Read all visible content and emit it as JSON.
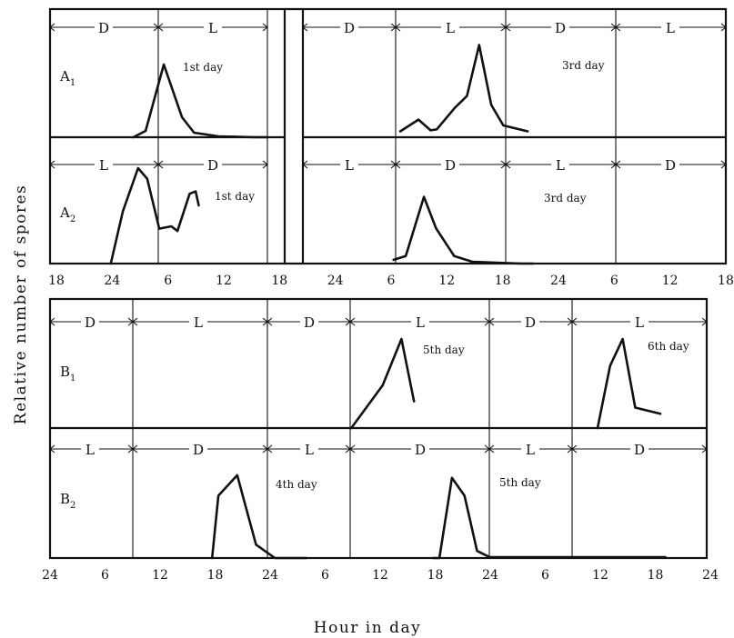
{
  "chart_data": {
    "type": "line",
    "ylabel": "Relative number of spores",
    "xlabel": "Hour in day",
    "top": {
      "x_ticks": [
        "18",
        "24",
        "6",
        "12",
        "18",
        "24",
        "6",
        "12",
        "18",
        "24",
        "6",
        "12",
        "18"
      ],
      "panels": [
        {
          "label": "A",
          "subscript": "1",
          "segments": [
            [
              "D",
              "L"
            ],
            [
              "D",
              "L",
              "D",
              "L"
            ]
          ],
          "series": [
            {
              "day_label": "1st day",
              "points": [
                [
                  22,
                  0
                ],
                [
                  24,
                  0.07
                ],
                [
                  27,
                  0.8
                ],
                [
                  30,
                  0.22
                ],
                [
                  32,
                  0.05
                ],
                [
                  36,
                  0.01
                ],
                [
                  42,
                  0
                ],
                [
                  44,
                  0
                ]
              ]
            },
            {
              "day_label": "3rd day",
              "points": [
                [
                  15,
                  0.06
                ],
                [
                  18,
                  0.18
                ],
                [
                  20,
                  0.07
                ],
                [
                  21,
                  0.08
                ],
                [
                  24,
                  0.3
                ],
                [
                  26,
                  0.42
                ],
                [
                  28,
                  0.94
                ],
                [
                  30,
                  0.33
                ],
                [
                  32,
                  0.12
                ],
                [
                  36,
                  0.06
                ]
              ]
            }
          ]
        },
        {
          "label": "A",
          "subscript": "2",
          "segments": [
            [
              "L",
              "D"
            ],
            [
              "L",
              "D",
              "L",
              "D"
            ]
          ],
          "series": [
            {
              "day_label": "1st day",
              "points": [
                [
                  25,
                  0
                ],
                [
                  27,
                  0.45
                ],
                [
                  29.5,
                  0.82
                ],
                [
                  31,
                  0.73
                ],
                [
                  33,
                  0.3
                ],
                [
                  35,
                  0.32
                ],
                [
                  36,
                  0.28
                ],
                [
                  38,
                  0.6
                ],
                [
                  39,
                  0.62
                ],
                [
                  39.5,
                  0.5
                ]
              ]
            },
            {
              "day_label": "3rd day",
              "points": [
                [
                  13,
                  0.04
                ],
                [
                  15,
                  0.08
                ],
                [
                  18,
                  0.72
                ],
                [
                  20,
                  0.38
                ],
                [
                  23,
                  0.08
                ],
                [
                  26,
                  0.02
                ],
                [
                  30,
                  0.01
                ],
                [
                  34,
                  0
                ],
                [
                  36,
                  0
                ]
              ]
            }
          ]
        }
      ]
    },
    "bottom": {
      "x_ticks": [
        "24",
        "6",
        "12",
        "18",
        "24",
        "6",
        "12",
        "18",
        "24",
        "6",
        "12",
        "18",
        "24"
      ],
      "panels": [
        {
          "label": "B",
          "subscript": "1",
          "segments": [
            "D",
            "L",
            "D",
            "L",
            "D",
            "L"
          ],
          "series": [
            {
              "day_label": "5th day",
              "points": [
                [
                  48,
                  0
                ],
                [
                  53,
                  0.48
                ],
                [
                  56,
                  1.0
                ],
                [
                  58,
                  0.3
                ]
              ]
            },
            {
              "day_label": "6th day",
              "points": [
                [
                  60,
                  0
                ],
                [
                  62,
                  0.7
                ],
                [
                  64,
                  1.0
                ],
                [
                  66,
                  0.23
                ],
                [
                  70,
                  0.16
                ]
              ]
            }
          ]
        },
        {
          "label": "B",
          "subscript": "2",
          "segments": [
            "L",
            "D",
            "L",
            "D",
            "L",
            "D"
          ],
          "series": [
            {
              "day_label": "4th day",
              "points": [
                [
                  18,
                  0
                ],
                [
                  19,
                  0.7
                ],
                [
                  22,
                  0.93
                ],
                [
                  25,
                  0.15
                ],
                [
                  28,
                  0
                ],
                [
                  33,
                  0
                ]
              ]
            },
            {
              "day_label": "5th day",
              "points": [
                [
                  8,
                  0
                ],
                [
                  9,
                  0
                ],
                [
                  11,
                  0.9
                ],
                [
                  13,
                  0.7
                ],
                [
                  15,
                  0.08
                ],
                [
                  17,
                  0.01
                ],
                [
                  24,
                  0.01
                ],
                [
                  30,
                  0.01
                ],
                [
                  36,
                  0.01
                ],
                [
                  42,
                  0.01
                ],
                [
                  45,
                  0.01
                ]
              ]
            }
          ]
        }
      ]
    }
  }
}
